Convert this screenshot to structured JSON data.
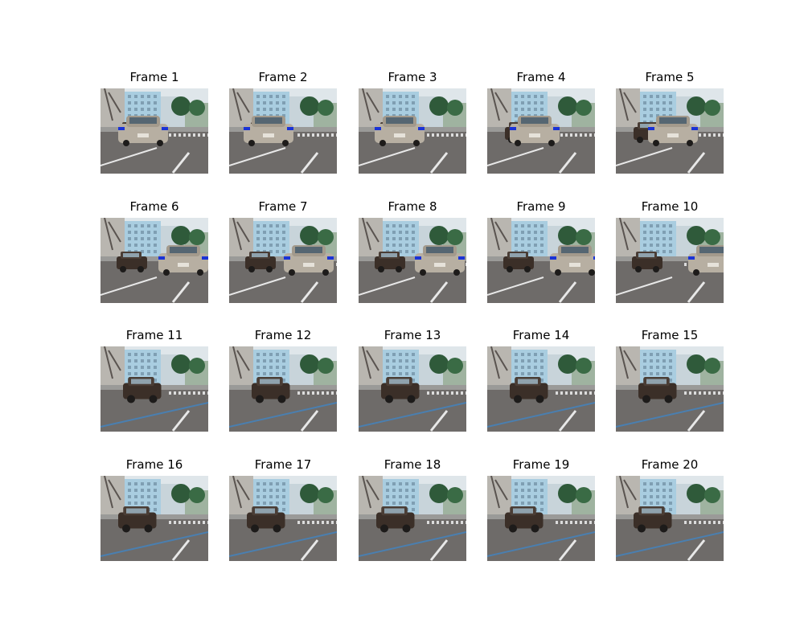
{
  "figure": {
    "frames": [
      {
        "title": "Frame 1"
      },
      {
        "title": "Frame 2"
      },
      {
        "title": "Frame 3"
      },
      {
        "title": "Frame 4"
      },
      {
        "title": "Frame 5"
      },
      {
        "title": "Frame 6"
      },
      {
        "title": "Frame 7"
      },
      {
        "title": "Frame 8"
      },
      {
        "title": "Frame 9"
      },
      {
        "title": "Frame 10"
      },
      {
        "title": "Frame 11"
      },
      {
        "title": "Frame 12"
      },
      {
        "title": "Frame 13"
      },
      {
        "title": "Frame 14"
      },
      {
        "title": "Frame 15"
      },
      {
        "title": "Frame 16"
      },
      {
        "title": "Frame 17"
      },
      {
        "title": "Frame 18"
      },
      {
        "title": "Frame 19"
      },
      {
        "title": "Frame 20"
      }
    ]
  }
}
